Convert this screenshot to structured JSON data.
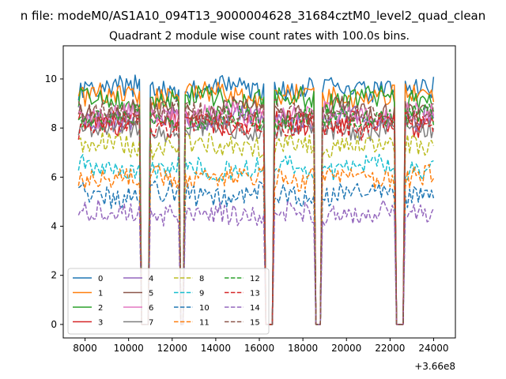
{
  "chart_data": {
    "type": "line",
    "suptitle": "n file: modeM0/AS1A10_094T13_9000004628_31684cztM0_level2_quad_clean",
    "title": "Quadrant 2 module wise count rates with 100.0s bins.",
    "xlabel": "",
    "ylabel": "",
    "x_offset_label": "+3.66e8",
    "xlim": [
      7000,
      25000
    ],
    "ylim": [
      -0.55,
      11.35
    ],
    "xticks": [
      8000,
      10000,
      12000,
      14000,
      16000,
      18000,
      20000,
      22000,
      24000
    ],
    "xtick_labels": [
      "8000",
      "10000",
      "12000",
      "14000",
      "16000",
      "18000",
      "20000",
      "22000",
      "24000"
    ],
    "yticks": [
      0,
      2,
      4,
      6,
      8,
      10
    ],
    "ytick_labels": [
      "0",
      "2",
      "4",
      "6",
      "8",
      "10"
    ],
    "grid": false,
    "legend_placement": "lower-left",
    "legend_columns": 4,
    "x_range": [
      7700,
      24000
    ],
    "bin_width": 100,
    "gaps": [
      {
        "x": [
          10600,
          10900
        ]
      },
      {
        "x": [
          12400,
          12500
        ]
      },
      {
        "x": [
          16300,
          16600
        ]
      },
      {
        "x": [
          18600,
          18800
        ]
      },
      {
        "x": [
          22300,
          22600
        ]
      }
    ],
    "series": [
      {
        "name": "0",
        "color": "#1f77b4",
        "dash": "solid",
        "level": 9.6
      },
      {
        "name": "1",
        "color": "#ff7f0e",
        "dash": "solid",
        "level": 9.3
      },
      {
        "name": "2",
        "color": "#2ca02c",
        "dash": "solid",
        "level": 9.2
      },
      {
        "name": "3",
        "color": "#d62728",
        "dash": "solid",
        "level": 8.2
      },
      {
        "name": "4",
        "color": "#9467bd",
        "dash": "solid",
        "level": 8.4
      },
      {
        "name": "5",
        "color": "#8c564b",
        "dash": "solid",
        "level": 8.7
      },
      {
        "name": "6",
        "color": "#e377c2",
        "dash": "solid",
        "level": 8.5
      },
      {
        "name": "7",
        "color": "#7f7f7f",
        "dash": "solid",
        "level": 8.0
      },
      {
        "name": "8",
        "color": "#bcbd22",
        "dash": "dashed",
        "level": 7.3
      },
      {
        "name": "9",
        "color": "#17becf",
        "dash": "dashed",
        "level": 6.4
      },
      {
        "name": "10",
        "color": "#1f77b4",
        "dash": "dashed",
        "level": 5.3
      },
      {
        "name": "11",
        "color": "#ff7f0e",
        "dash": "dashed",
        "level": 6.0
      },
      {
        "name": "12",
        "color": "#2ca02c",
        "dash": "dashed",
        "level": 8.4
      },
      {
        "name": "13",
        "color": "#d62728",
        "dash": "dashed",
        "level": 8.1
      },
      {
        "name": "14",
        "color": "#9467bd",
        "dash": "dashed",
        "level": 4.5
      },
      {
        "name": "15",
        "color": "#8c564b",
        "dash": "dashed",
        "level": 8.6
      }
    ]
  }
}
